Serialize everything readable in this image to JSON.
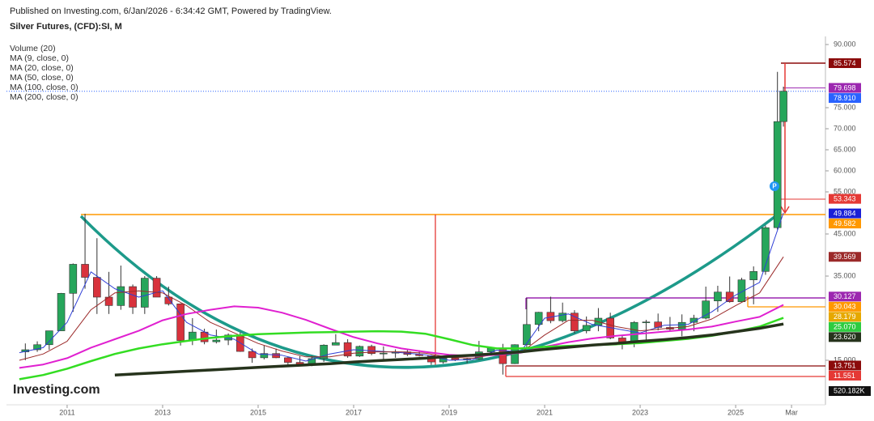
{
  "chart_data": {
    "type": "candlestick",
    "published": "Published on Investing.com, 6/Jan/2026 - 6:34:42 GMT, Powered by TradingView.",
    "title": "Silver Futures, (CFD):SI, M",
    "volume_legend": "Volume (20)",
    "logo": "Investing.com",
    "marker": "P",
    "volume_label": "520.182K",
    "up_color": "#26a65b",
    "down_color": "#d8323c",
    "xlim": [
      2009.73,
      2026.88
    ],
    "xticks": [
      2011,
      2013,
      2015,
      2017,
      2019,
      2021,
      2023,
      2025,
      {
        "value": 2026.17,
        "label": "Mar"
      }
    ],
    "ylim": [
      5,
      90
    ],
    "yticks": [
      {
        "value": 90,
        "label": "90.000"
      },
      {
        "value": 75,
        "label": "75.000"
      },
      {
        "value": 70,
        "label": "70.000"
      },
      {
        "value": 65,
        "label": "65.000"
      },
      {
        "value": 60,
        "label": "60.000"
      },
      {
        "value": 55,
        "label": "55.000"
      },
      {
        "value": 45,
        "label": "45.000"
      },
      {
        "value": 35,
        "label": "35.000"
      },
      {
        "value": 15,
        "label": "15.000"
      }
    ],
    "candles": {
      "x": [
        2010.125,
        2010.375,
        2010.625,
        2010.875,
        2011.125,
        2011.375,
        2011.625,
        2011.875,
        2012.125,
        2012.375,
        2012.625,
        2012.875,
        2013.125,
        2013.375,
        2013.625,
        2013.875,
        2014.125,
        2014.375,
        2014.625,
        2014.875,
        2015.125,
        2015.375,
        2015.625,
        2015.875,
        2016.125,
        2016.375,
        2016.625,
        2016.875,
        2017.125,
        2017.375,
        2017.625,
        2017.875,
        2018.125,
        2018.375,
        2018.625,
        2018.875,
        2019.125,
        2019.375,
        2019.625,
        2019.875,
        2020.125,
        2020.375,
        2020.625,
        2020.875,
        2021.125,
        2021.375,
        2021.625,
        2021.875,
        2022.125,
        2022.375,
        2022.625,
        2022.875,
        2023.125,
        2023.375,
        2023.625,
        2023.875,
        2024.125,
        2024.375,
        2024.625,
        2024.875,
        2025.125,
        2025.375,
        2025.625,
        2025.875,
        2026.0
      ],
      "open": [
        17,
        17.5,
        18.7,
        22,
        30.9,
        37.8,
        34.7,
        30,
        28,
        32.5,
        27.6,
        34.5,
        30,
        28.4,
        19.7,
        21.7,
        19.4,
        19.8,
        21,
        17.1,
        15.6,
        16.6,
        15.6,
        14.5,
        13.8,
        15.4,
        18.6,
        19.2,
        16,
        18.3,
        16.6,
        16.7,
        17,
        16.4,
        16.1,
        14.6,
        15.5,
        15.1,
        15.3,
        17,
        17.9,
        14.2,
        18.7,
        23.5,
        26.4,
        24.4,
        26.2,
        22,
        23.3,
        25,
        20.3,
        19,
        24,
        24.1,
        22.8,
        22.4,
        24,
        25,
        29.1,
        31.2,
        28.9,
        34.1,
        36.1,
        46.5,
        71.7
      ],
      "high": [
        19,
        19.5,
        22,
        31,
        38,
        49.8,
        44,
        36,
        37.5,
        33,
        35,
        35,
        32.5,
        28.5,
        25,
        22.5,
        22.3,
        21.4,
        21.6,
        17.8,
        18.5,
        17.8,
        15.8,
        16,
        16,
        18.8,
        21.2,
        20,
        18.5,
        18.7,
        18.3,
        17.6,
        17.7,
        17.4,
        16.2,
        15.6,
        16.2,
        15.5,
        19.6,
        18.2,
        18.9,
        18.8,
        29.8,
        26.5,
        30.1,
        28.7,
        26.9,
        25.4,
        27.4,
        26.3,
        20.9,
        24.3,
        24.6,
        26.1,
        25.3,
        25.9,
        25.8,
        32.5,
        32.7,
        34.9,
        34.6,
        37.3,
        47,
        83.5,
        80
      ],
      "low": [
        15,
        17,
        17.5,
        22,
        26.5,
        32,
        26,
        26,
        27,
        26,
        26,
        30,
        28,
        18.5,
        18.6,
        18.8,
        19,
        18.6,
        17,
        14.4,
        15.2,
        15.5,
        13.9,
        13.6,
        13.6,
        14.6,
        18.6,
        15.6,
        15.8,
        16.2,
        15.2,
        15.6,
        16,
        15.9,
        13.9,
        14.2,
        14.8,
        14.3,
        15.1,
        16.5,
        11.6,
        14.1,
        17.7,
        21.9,
        23.8,
        24,
        21.4,
        21.4,
        21.9,
        20,
        17.6,
        18.1,
        19.9,
        22.1,
        22,
        20.7,
        21.9,
        24.7,
        26.5,
        28.7,
        28.8,
        28.3,
        35.3,
        46,
        70.5
      ],
      "close": [
        17.5,
        18.7,
        22,
        30.9,
        37.8,
        34.7,
        30,
        28,
        32.5,
        27.6,
        34.5,
        30,
        28.4,
        19.7,
        21.7,
        19.4,
        19.8,
        21,
        17.1,
        15.6,
        16.6,
        15.6,
        14.5,
        13.8,
        15.4,
        18.6,
        19.2,
        16,
        18.3,
        16.6,
        16.7,
        17,
        16.4,
        16.1,
        14.6,
        15.5,
        15.1,
        15.3,
        17,
        17.9,
        14.2,
        18.7,
        23.5,
        26.4,
        24.4,
        26.2,
        22,
        23.3,
        25,
        20.3,
        19,
        24,
        24.1,
        22.8,
        22.4,
        24,
        25,
        29.1,
        31.2,
        28.9,
        34.1,
        36.1,
        46.5,
        71.7,
        78.91
      ]
    },
    "ma_x": [
      2010,
      2010.5,
      2011,
      2011.5,
      2012,
      2012.5,
      2013,
      2013.5,
      2014,
      2014.5,
      2015,
      2015.5,
      2016,
      2016.5,
      2017,
      2017.5,
      2018,
      2018.5,
      2019,
      2019.5,
      2020,
      2020.5,
      2021,
      2021.5,
      2022,
      2022.5,
      2023,
      2023.5,
      2024,
      2024.5,
      2025,
      2025.5,
      2026
    ],
    "series": [
      {
        "name": "MA (9, close, 0)",
        "color": "#2f3fd6",
        "width": 1,
        "values": [
          16.8,
          18,
          24,
          36,
          32,
          30,
          31.5,
          24,
          21,
          20,
          16.5,
          16.2,
          14.8,
          16.5,
          17.5,
          17.2,
          16.8,
          16.3,
          15,
          15.2,
          17.4,
          17,
          25,
          26,
          23.5,
          22.5,
          21.5,
          23.3,
          23.5,
          26.5,
          30.5,
          33.5,
          50
        ]
      },
      {
        "name": "MA (20, close, 0)",
        "color": "#9b2a2a",
        "width": 1,
        "values": [
          15,
          16.5,
          19.5,
          27,
          31,
          31.5,
          31,
          28,
          24,
          21.5,
          19,
          17.2,
          15.8,
          15.8,
          16.7,
          17,
          17,
          16.7,
          15.7,
          15.5,
          16.5,
          16.8,
          21,
          24.5,
          24.5,
          23,
          22,
          22.5,
          23,
          24.8,
          28,
          31,
          39.569
        ]
      },
      {
        "name": "MA (50, close, 0)",
        "color": "#e020d0",
        "width": 2,
        "values": [
          13.2,
          14,
          15.5,
          18,
          20,
          22,
          24.5,
          26,
          27,
          27.8,
          27.5,
          26.3,
          24.6,
          22.5,
          20.5,
          19,
          17.8,
          17,
          16.3,
          16,
          16.3,
          16.8,
          18.2,
          19.3,
          20.2,
          20.8,
          21.3,
          21.8,
          22.3,
          23,
          24.2,
          25.3,
          28.179
        ]
      },
      {
        "name": "MA (100, close, 0)",
        "color": "#33dd22",
        "width": 2.5,
        "values": [
          10.5,
          11.5,
          13,
          14.8,
          16.5,
          17.8,
          18.8,
          19.6,
          20.3,
          20.8,
          21.2,
          21.4,
          21.6,
          21.7,
          21.8,
          21.9,
          21.8,
          21.3,
          20,
          18.6,
          17.8,
          17.8,
          18.2,
          18.4,
          18.6,
          18.8,
          19.1,
          19.6,
          20.1,
          20.8,
          21.8,
          23,
          25.07
        ]
      },
      {
        "name": "MA (200, close, 0)",
        "color": "#26331c",
        "width": 3.5,
        "values": [
          null,
          null,
          null,
          null,
          11.5,
          11.8,
          12.1,
          12.4,
          12.7,
          13,
          13.3,
          13.6,
          13.9,
          14.2,
          14.6,
          14.9,
          15.2,
          15.5,
          15.9,
          16.2,
          16.6,
          17,
          17.6,
          18.1,
          18.6,
          19,
          19.5,
          19.9,
          20.4,
          21,
          21.8,
          22.6,
          23.62
        ]
      }
    ],
    "price_labels": [
      {
        "value": 85.574,
        "label": "85.574",
        "color": "#8b0a0a"
      },
      {
        "value": 79.698,
        "label": "79.698",
        "color": "#9c27b0"
      },
      {
        "value": 78.91,
        "label": "78.910",
        "color": "#2962ff"
      },
      {
        "value": 53.343,
        "label": "53.343",
        "color": "#e53935"
      },
      {
        "value": 49.884,
        "label": "49.884",
        "color": "#1a1fd6"
      },
      {
        "value": 49.582,
        "label": "49.582",
        "color": "#ff9800"
      },
      {
        "value": 39.569,
        "label": "39.569",
        "color": "#9b2a2a"
      },
      {
        "value": 30.127,
        "label": "30.127",
        "color": "#9c27b0"
      },
      {
        "value": 30.043,
        "label": "30.043",
        "color": "#ff9800"
      },
      {
        "value": 28.179,
        "label": "28.179",
        "color": "#e6a800"
      },
      {
        "value": 25.07,
        "label": "25.070",
        "color": "#2ecc40"
      },
      {
        "value": 23.62,
        "label": "23.620",
        "color": "#26331c"
      },
      {
        "value": 13.751,
        "label": "13.751",
        "color": "#8b0a0a"
      },
      {
        "value": 11.551,
        "label": "11.551",
        "color": "#e53935"
      }
    ]
  }
}
